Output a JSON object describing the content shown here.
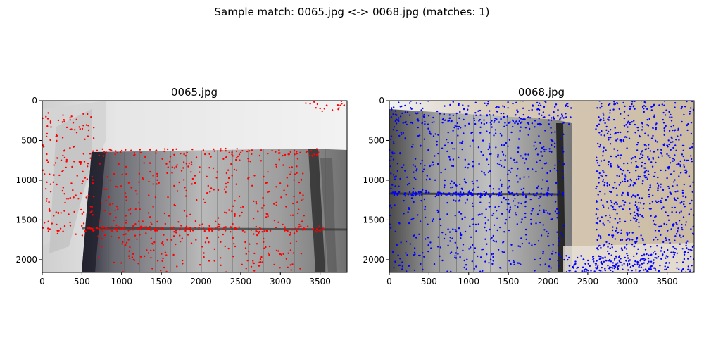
{
  "figure": {
    "suptitle": "Sample match: 0065.jpg <-> 0068.jpg (matches: 1)"
  },
  "chart_data": [
    {
      "type": "scatter",
      "title": "0065.jpg",
      "xlabel": "",
      "ylabel": "",
      "xlim": [
        0,
        3840
      ],
      "ylim": [
        2160,
        0
      ],
      "y_inverted": true,
      "xticks": [
        0,
        500,
        1000,
        1500,
        2000,
        2500,
        3000,
        3500
      ],
      "yticks": [
        0,
        500,
        1000,
        1500,
        2000
      ],
      "point_color": "#ff0000",
      "background_image": "photo of a staircase (image content, not data)",
      "keypoints_estimated": {
        "approx_count": "hundreds (density sampled)",
        "clusters": [
          {
            "region": "top edge of stairs",
            "x": [
              600,
              3500
            ],
            "y": [
              600,
              700
            ]
          },
          {
            "region": "middle rail line",
            "x": [
              550,
              3550
            ],
            "y": [
              1580,
              1650
            ]
          },
          {
            "region": "left slanted wall",
            "x": [
              0,
              650
            ],
            "y": [
              150,
              1700
            ]
          },
          {
            "region": "stair body",
            "x": [
              700,
              3300
            ],
            "y": [
              700,
              2160
            ]
          },
          {
            "region": "top-right corner",
            "x": [
              3300,
              3840
            ],
            "y": [
              0,
              150
            ]
          }
        ]
      }
    },
    {
      "type": "scatter",
      "title": "0068.jpg",
      "xlabel": "",
      "ylabel": "",
      "xlim": [
        0,
        3840
      ],
      "ylim": [
        2160,
        0
      ],
      "y_inverted": true,
      "xticks": [
        0,
        500,
        1000,
        1500,
        2000,
        2500,
        3000,
        3500
      ],
      "yticks": [
        0,
        500,
        1000,
        1500,
        2000
      ],
      "point_color": "#0000ff",
      "background_image": "photo of a staircase (image content, not data)",
      "keypoints_estimated": {
        "approx_count": "thousands (density sampled)",
        "clusters": [
          {
            "region": "top edge",
            "x": [
              0,
              2300
            ],
            "y": [
              0,
              300
            ]
          },
          {
            "region": "rail line",
            "x": [
              0,
              2200
            ],
            "y": [
              1150,
              1200
            ]
          },
          {
            "region": "stair body",
            "x": [
              0,
              2200
            ],
            "y": [
              200,
              2160
            ]
          },
          {
            "region": "right wall textured",
            "x": [
              2600,
              3840
            ],
            "y": [
              0,
              2160
            ]
          },
          {
            "region": "bottom-right",
            "x": [
              2200,
              3300
            ],
            "y": [
              1950,
              2160
            ]
          }
        ]
      }
    }
  ]
}
